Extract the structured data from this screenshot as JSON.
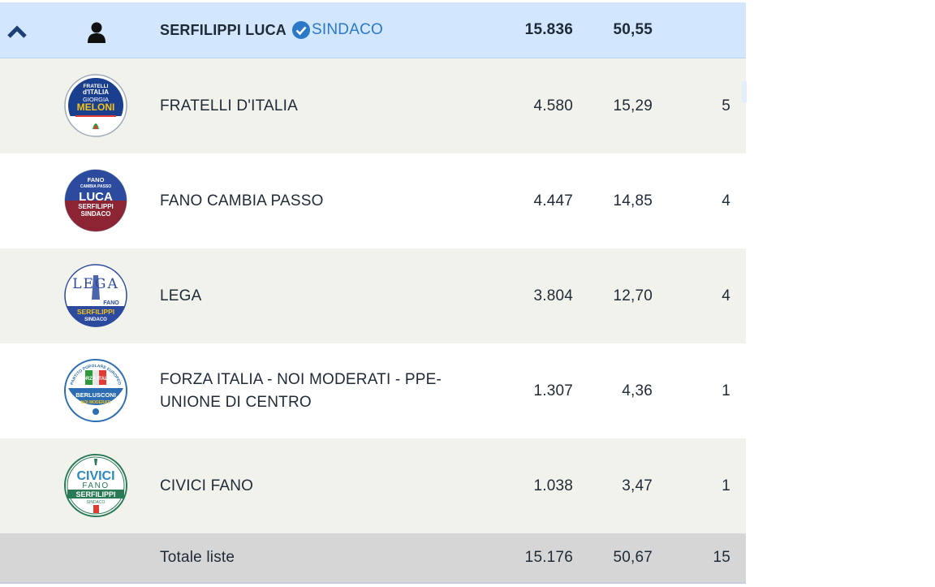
{
  "candidate": {
    "name": "SERFILIPPI LUCA",
    "role": "SINDACO",
    "votes": "15.836",
    "percent": "50,55",
    "icons": {
      "collapse": "chevron-up-icon",
      "person": "person-icon",
      "verified": "check-circle-icon"
    },
    "colors": {
      "row_bg": "#d2e7fd",
      "accent": "#2b78c6",
      "chevron": "#1c3f74"
    }
  },
  "lists": [
    {
      "name": "FRATELLI D'ITALIA",
      "votes": "4.580",
      "percent": "15,29",
      "seats": "5",
      "logo_text": [
        "FRATELLI",
        "d'ITALIA",
        "GIORGIA",
        "MELONI"
      ]
    },
    {
      "name": "FANO CAMBIA PASSO",
      "votes": "4.447",
      "percent": "14,85",
      "seats": "4",
      "logo_text": [
        "FANO",
        "CAMBIA PASSO",
        "LUCA",
        "SERFILIPPI",
        "SINDACO"
      ]
    },
    {
      "name": "LEGA",
      "votes": "3.804",
      "percent": "12,70",
      "seats": "4",
      "logo_text": [
        "LEGA",
        "FANO",
        "SERFILIPPI",
        "SINDACO"
      ]
    },
    {
      "name": "FORZA ITALIA - NOI MODERATI - PPE-UNIONE DI CENTRO",
      "votes": "1.307",
      "percent": "4,36",
      "seats": "1",
      "logo_text": [
        "PARTITO POPOLARE EUROPEO",
        "FORZA ITALIA",
        "BERLUSCONI",
        "NOI MODERATI"
      ]
    },
    {
      "name": "CIVICI FANO",
      "votes": "1.038",
      "percent": "3,47",
      "seats": "1",
      "logo_text": [
        "CIVICI",
        "FANO",
        "SERFILIPPI",
        "SINDACO"
      ]
    }
  ],
  "total": {
    "label": "Totale liste",
    "votes": "15.176",
    "percent": "50,67",
    "seats": "15"
  }
}
